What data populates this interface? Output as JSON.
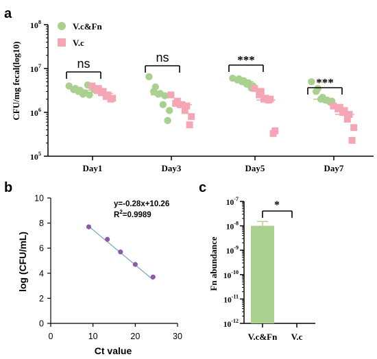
{
  "chart_data": [
    {
      "panel_label": "a",
      "type": "scatter",
      "y_scale": "log",
      "ylabel": "CFU/mg fecal(log10)",
      "ylim": [
        100000,
        100000000
      ],
      "y_ticks": [
        {
          "value": 100000,
          "base": "10",
          "exp": "5"
        },
        {
          "value": 1000000,
          "base": "10",
          "exp": "6"
        },
        {
          "value": 10000000,
          "base": "10",
          "exp": "7"
        },
        {
          "value": 100000000,
          "base": "10",
          "exp": "8"
        }
      ],
      "categories": [
        "Day1",
        "Day3",
        "Day5",
        "Day7"
      ],
      "series": [
        {
          "name": "V.c&Fn",
          "color": "#a9d08e",
          "marker": "circle",
          "values": [
            [
              4000000,
              3500000,
              3300000,
              3200000,
              3000000,
              2800000,
              2600000,
              2500000,
              4200000,
              3300000
            ],
            [
              6500000,
              3800000,
              3000000,
              2700000,
              2600000,
              2400000,
              1500000,
              1100000,
              650000
            ],
            [
              6000000,
              5800000,
              5500000,
              5300000,
              5000000,
              4700000,
              4400000,
              4000000,
              3600000
            ],
            [
              5000000,
              3500000,
              3000000,
              2200000,
              2000000,
              1900000,
              1900000,
              1800000,
              1700000
            ]
          ],
          "means": [
            3200000,
            2500000,
            5000000,
            2000000
          ]
        },
        {
          "name": "V.c",
          "color": "#f4a6b4",
          "marker": "square",
          "values": [
            [
              4000000,
              3500000,
              3300000,
              3000000,
              2800000,
              2500000,
              2300000,
              2100000,
              2000000
            ],
            [
              2500000,
              1800000,
              1600000,
              1500000,
              1500000,
              1400000,
              1100000,
              800000,
              520000
            ],
            [
              3500000,
              3000000,
              2500000,
              2100000,
              2000000,
              2000000,
              1900000,
              380000,
              330000
            ],
            [
              1400000,
              1300000,
              1200000,
              1100000,
              1000000,
              900000,
              700000,
              450000,
              230000
            ]
          ],
          "means": [
            2700000,
            1500000,
            1900000,
            900000
          ]
        }
      ],
      "significance": [
        "ns",
        "ns",
        "***",
        "***"
      ]
    },
    {
      "panel_label": "b",
      "type": "scatter",
      "xlabel": "Ct value",
      "ylabel": "log (CFU/mL)",
      "xlim": [
        0,
        30
      ],
      "ylim": [
        0,
        10
      ],
      "x_ticks": [
        "0",
        "10",
        "20",
        "30"
      ],
      "y_ticks": [
        "0",
        "2",
        "4",
        "6",
        "8",
        "10"
      ],
      "points": [
        {
          "x": 9.0,
          "y": 7.7
        },
        {
          "x": 13.4,
          "y": 6.7
        },
        {
          "x": 16.5,
          "y": 5.7
        },
        {
          "x": 20.0,
          "y": 4.7
        },
        {
          "x": 24.2,
          "y": 3.7
        }
      ],
      "fit": {
        "slope": -0.28,
        "intercept": 10.26,
        "x_range": [
          9.0,
          24.2
        ]
      },
      "equation": "y=-0.28x+10.26",
      "r2_label": "R",
      "r2_exp": "2",
      "r2_value": "=0.9989",
      "point_color": "#8e5aa8",
      "line_color": "#7ea8c9"
    },
    {
      "panel_label": "c",
      "type": "bar",
      "y_scale": "log",
      "ylabel": "Fn abundance",
      "ylim": [
        1e-12,
        1e-07
      ],
      "y_ticks": [
        {
          "value": 1e-12,
          "base": "10",
          "exp": "-12"
        },
        {
          "value": 1e-11,
          "base": "10",
          "exp": "-11"
        },
        {
          "value": 1e-10,
          "base": "10",
          "exp": "-10"
        },
        {
          "value": 1e-09,
          "base": "10",
          "exp": "-9"
        },
        {
          "value": 1e-08,
          "base": "10",
          "exp": "-8"
        },
        {
          "value": 1e-07,
          "base": "10",
          "exp": "-7"
        }
      ],
      "categories": [
        "V.c&Fn",
        "V.c"
      ],
      "values": [
        1e-08,
        0
      ],
      "error_top": 1.5e-08,
      "bar_color": "#a9d08e",
      "significance": "*"
    }
  ]
}
